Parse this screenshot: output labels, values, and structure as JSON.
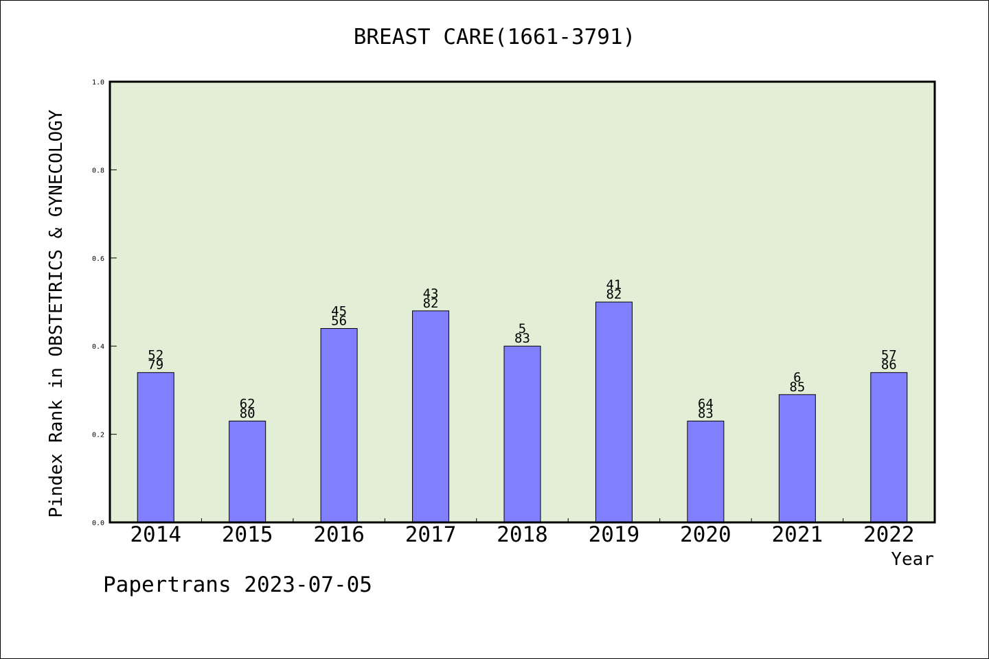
{
  "chart_data": {
    "type": "bar",
    "title": "BREAST CARE(1661-3791)",
    "xlabel": "Year",
    "ylabel": "Pindex Rank in OBSTETRICS & GYNECOLOGY",
    "ylim": [
      0,
      1.0
    ],
    "yticks": [
      "0.0",
      "0.2",
      "0.4",
      "0.6",
      "0.8",
      "1.0"
    ],
    "categories": [
      "2014",
      "2015",
      "2016",
      "2017",
      "2018",
      "2019",
      "2020",
      "2021",
      "2022"
    ],
    "values": [
      0.34,
      0.23,
      0.44,
      0.48,
      0.4,
      0.5,
      0.23,
      0.29,
      0.34
    ],
    "labels_top": [
      "52",
      "62",
      "45",
      "43",
      "5",
      "41",
      "64",
      "6",
      "57"
    ],
    "labels_bottom": [
      "79",
      "80",
      "56",
      "82",
      "83",
      "82",
      "83",
      "85",
      "86"
    ],
    "grid": false,
    "colors": {
      "bar_fill": "#8080ff",
      "bar_stroke": "#000000",
      "plot_bg": "#e2efd6",
      "axis": "#000000"
    }
  },
  "footer": "Papertrans 2023-07-05"
}
